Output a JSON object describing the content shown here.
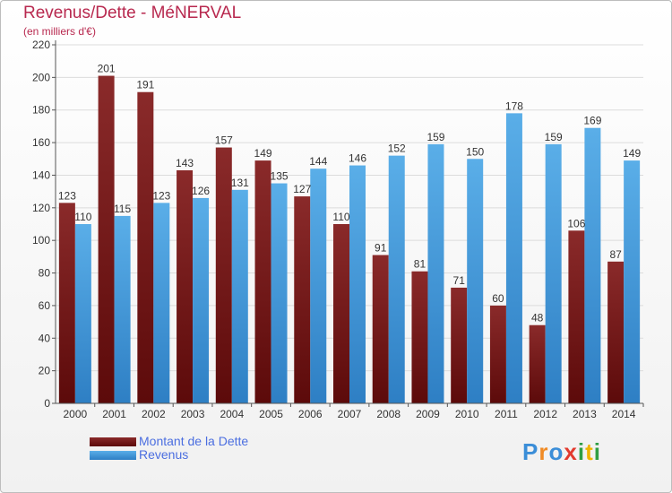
{
  "chart_data": {
    "type": "bar",
    "title": "Revenus/Dette - MéNERVAL",
    "subtitle": "(en milliers d'€)",
    "categories": [
      "2000",
      "2001",
      "2002",
      "2003",
      "2004",
      "2005",
      "2006",
      "2007",
      "2008",
      "2009",
      "2010",
      "2011",
      "2012",
      "2013",
      "2014"
    ],
    "series": [
      {
        "name": "Montant de la Dette",
        "color": "#7a1c1c",
        "values": [
          123,
          201,
          191,
          143,
          157,
          149,
          127,
          110,
          91,
          81,
          71,
          60,
          48,
          106,
          87
        ]
      },
      {
        "name": "Revenus",
        "color": "#3f97d8",
        "values": [
          110,
          115,
          123,
          126,
          131,
          135,
          144,
          146,
          152,
          159,
          150,
          178,
          159,
          169,
          149
        ]
      }
    ],
    "ylim": [
      0,
      220
    ],
    "yticks": [
      0,
      20,
      40,
      60,
      80,
      100,
      120,
      140,
      160,
      180,
      200,
      220
    ],
    "grid": true,
    "legend_position": "bottom-left"
  },
  "logo": {
    "text": "Proxiti",
    "letters": [
      {
        "char": "P",
        "color": "#3b8ed8"
      },
      {
        "char": "r",
        "color": "#f08a24"
      },
      {
        "char": "o",
        "color": "#3b8ed8"
      },
      {
        "char": "x",
        "color": "#e23a2e"
      },
      {
        "char": "i",
        "color": "#2f9e44"
      },
      {
        "char": "t",
        "color": "#f0b400"
      },
      {
        "char": "i",
        "color": "#2f9e44"
      }
    ]
  }
}
